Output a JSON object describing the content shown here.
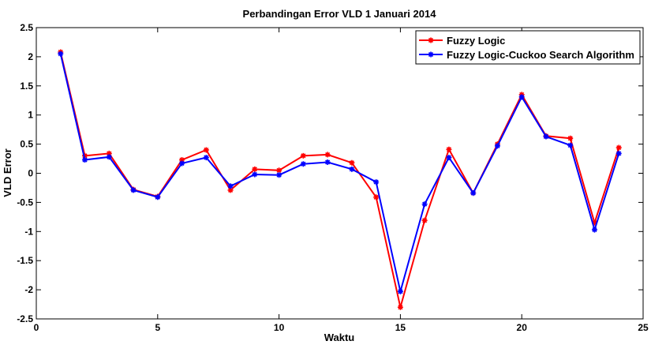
{
  "chart_data": {
    "type": "line",
    "title": "Perbandingan Error VLD 1 Januari 2014",
    "xlabel": "Waktu",
    "ylabel": "VLD Error",
    "xlim": [
      0,
      25
    ],
    "ylim": [
      -2.5,
      2.5
    ],
    "xticks": [
      "0",
      "5",
      "10",
      "15",
      "20",
      "25"
    ],
    "yticks": [
      "2.5",
      "2",
      "1.5",
      "1",
      "0.5",
      "0",
      "-0.5",
      "-1",
      "-1.5",
      "-2",
      "-2.5"
    ],
    "grid": false,
    "legend_position": "top-right",
    "x": [
      1,
      2,
      3,
      4,
      5,
      6,
      7,
      8,
      9,
      10,
      11,
      12,
      13,
      14,
      15,
      16,
      17,
      18,
      19,
      20,
      21,
      22,
      23,
      24
    ],
    "series": [
      {
        "name": "Fuzzy Logic",
        "color": "#ff0000",
        "values": [
          2.08,
          0.3,
          0.34,
          -0.28,
          -0.4,
          0.23,
          0.4,
          -0.29,
          0.07,
          0.05,
          0.3,
          0.32,
          0.18,
          -0.41,
          -2.3,
          -0.81,
          0.41,
          -0.34,
          0.5,
          1.35,
          0.64,
          0.6,
          -0.85,
          0.44
        ]
      },
      {
        "name": "Fuzzy Logic-Cuckoo Search Algorithm",
        "color": "#0000ff",
        "values": [
          2.05,
          0.23,
          0.28,
          -0.29,
          -0.41,
          0.17,
          0.27,
          -0.22,
          -0.02,
          -0.03,
          0.16,
          0.19,
          0.07,
          -0.15,
          -2.03,
          -0.53,
          0.27,
          -0.34,
          0.47,
          1.31,
          0.63,
          0.48,
          -0.97,
          0.34
        ]
      }
    ]
  }
}
